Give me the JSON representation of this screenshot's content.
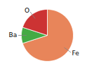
{
  "chart_data": {
    "type": "pie",
    "categories": [
      "Fe",
      "Ba",
      "O"
    ],
    "values": [
      70,
      10,
      20
    ],
    "colors": [
      "#E8855A",
      "#44AA44",
      "#CC3333"
    ]
  }
}
